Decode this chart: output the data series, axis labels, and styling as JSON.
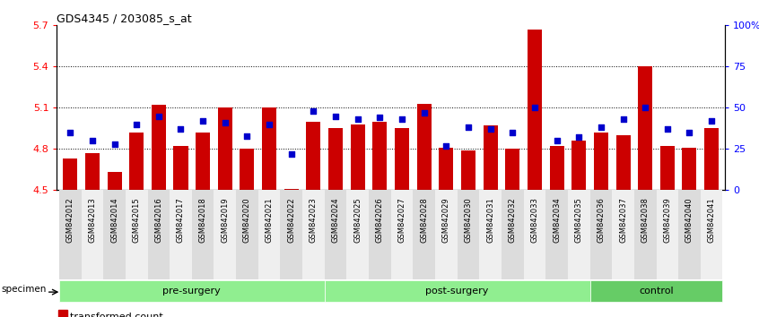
{
  "title": "GDS4345 / 203085_s_at",
  "samples": [
    "GSM842012",
    "GSM842013",
    "GSM842014",
    "GSM842015",
    "GSM842016",
    "GSM842017",
    "GSM842018",
    "GSM842019",
    "GSM842020",
    "GSM842021",
    "GSM842022",
    "GSM842023",
    "GSM842024",
    "GSM842025",
    "GSM842026",
    "GSM842027",
    "GSM842028",
    "GSM842029",
    "GSM842030",
    "GSM842031",
    "GSM842032",
    "GSM842033",
    "GSM842034",
    "GSM842035",
    "GSM842036",
    "GSM842037",
    "GSM842038",
    "GSM842039",
    "GSM842040",
    "GSM842041"
  ],
  "red_values": [
    4.73,
    4.77,
    4.63,
    4.92,
    5.12,
    4.82,
    4.92,
    5.1,
    4.8,
    5.1,
    4.51,
    5.0,
    4.95,
    4.98,
    5.0,
    4.95,
    5.13,
    4.81,
    4.79,
    4.97,
    4.8,
    5.67,
    4.82,
    4.86,
    4.92,
    4.9,
    5.4,
    4.82,
    4.81,
    4.95
  ],
  "blue_percentiles": [
    35,
    30,
    28,
    40,
    45,
    37,
    42,
    41,
    33,
    40,
    22,
    48,
    45,
    43,
    44,
    43,
    47,
    27,
    38,
    37,
    35,
    50,
    30,
    32,
    38,
    43,
    50,
    37,
    35,
    42
  ],
  "group_boundaries": [
    [
      0,
      12,
      "pre-surgery"
    ],
    [
      12,
      24,
      "post-surgery"
    ],
    [
      24,
      30,
      "control"
    ]
  ],
  "group_colors": [
    "#90EE90",
    "#90EE90",
    "#66CC66"
  ],
  "ylim_left": [
    4.5,
    5.7
  ],
  "ylim_right": [
    0,
    100
  ],
  "yticks_left": [
    4.5,
    4.8,
    5.1,
    5.4,
    5.7
  ],
  "yticks_right": [
    0,
    25,
    50,
    75,
    100
  ],
  "ytick_labels_right": [
    "0",
    "25",
    "50",
    "75",
    "100%"
  ],
  "bar_color": "#CC0000",
  "dot_color": "#0000CC",
  "baseline": 4.5,
  "grid_lines": [
    4.8,
    5.1,
    5.4
  ]
}
